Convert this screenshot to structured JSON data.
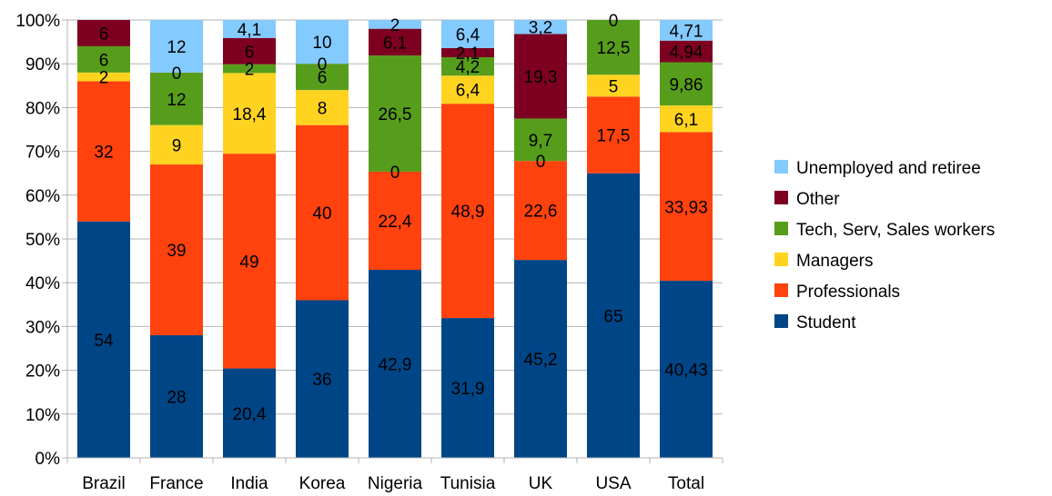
{
  "chart_data": {
    "type": "bar",
    "stacked": "percent",
    "categories": [
      "Brazil",
      "France",
      "India",
      "Korea",
      "Nigeria",
      "Tunisia",
      "UK",
      "USA",
      "Total"
    ],
    "series": [
      {
        "name": "Student",
        "color": "#004586",
        "values": [
          54,
          28,
          20.4,
          36,
          42.9,
          31.9,
          45.2,
          65,
          40.43
        ],
        "labels": [
          "54",
          "28",
          "20,4",
          "36",
          "42,9",
          "31,9",
          "45,2",
          "65",
          "40,43"
        ]
      },
      {
        "name": "Professionals",
        "color": "#ff420e",
        "values": [
          32,
          39,
          49,
          40,
          22.4,
          48.9,
          22.6,
          17.5,
          33.93
        ],
        "labels": [
          "32",
          "39",
          "49",
          "40",
          "22,4",
          "48,9",
          "22,6",
          "17,5",
          "33,93"
        ]
      },
      {
        "name": "Managers",
        "color": "#ffd320",
        "values": [
          2,
          9,
          18.4,
          8,
          0,
          6.4,
          0,
          5,
          6.1
        ],
        "labels": [
          "2",
          "9",
          "18,4",
          "8",
          "0",
          "6,4",
          "0",
          "5",
          "6,1"
        ]
      },
      {
        "name": "Tech, Serv, Sales workers",
        "color": "#579d1c",
        "values": [
          6,
          12,
          2,
          6,
          26.5,
          4.2,
          9.7,
          12.5,
          9.86
        ],
        "labels": [
          "6",
          "12",
          "2",
          "6",
          "26,5",
          "4,2",
          "9,7",
          "12,5",
          "9,86"
        ]
      },
      {
        "name": "Other",
        "color": "#7e0021",
        "values": [
          6,
          0,
          6,
          0,
          6.1,
          2.1,
          19.3,
          0,
          4.94
        ],
        "labels": [
          "6",
          "0",
          "6",
          "0",
          "6,1",
          "2,1",
          "19,3",
          "0",
          "4,94"
        ]
      },
      {
        "name": "Unemployed and retiree",
        "color": "#83caff",
        "values": [
          0,
          12,
          4.1,
          10,
          2,
          6.4,
          3.2,
          0,
          4.71
        ],
        "labels": [
          "",
          "12",
          "4,1",
          "10",
          "2",
          "6,4",
          "3,2",
          "",
          "4,71"
        ]
      }
    ],
    "yticks": [
      "0%",
      "10%",
      "20%",
      "30%",
      "40%",
      "50%",
      "60%",
      "70%",
      "80%",
      "90%",
      "100%"
    ],
    "ylim": [
      0,
      100
    ],
    "grid": true,
    "legend": "right",
    "legend_order": [
      "Unemployed and retiree",
      "Other",
      "Tech, Serv, Sales workers",
      "Managers",
      "Professionals",
      "Student"
    ]
  }
}
